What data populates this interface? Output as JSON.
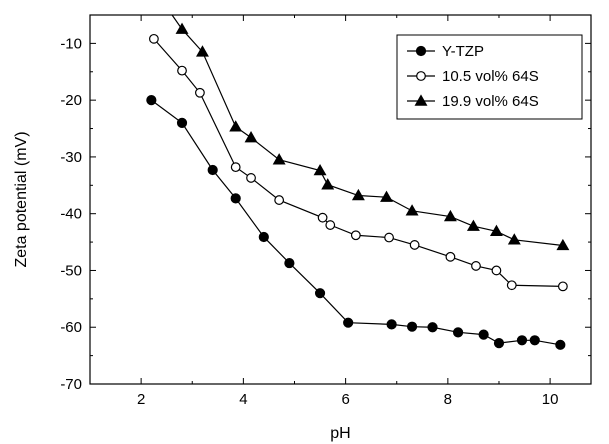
{
  "chart_data": {
    "type": "line",
    "title": "",
    "xlabel": "pH",
    "ylabel": "Zeta potential (mV)",
    "xlim": [
      1,
      10.8
    ],
    "ylim": [
      -70,
      -5
    ],
    "xticks": [
      2,
      4,
      6,
      8,
      10
    ],
    "yticks": [
      -70,
      -60,
      -50,
      -40,
      -30,
      -20,
      -10
    ],
    "grid": false,
    "legend": "top-right",
    "series": [
      {
        "name": "Y-TZP",
        "marker": "filled-circle",
        "x": [
          2.2,
          2.8,
          3.4,
          3.85,
          4.4,
          4.9,
          5.5,
          6.05,
          6.9,
          7.3,
          7.7,
          8.2,
          8.7,
          9.0,
          9.45,
          9.7,
          10.2
        ],
        "y": [
          -20,
          -24,
          -32.3,
          -37.3,
          -44.1,
          -48.7,
          -54,
          -59.2,
          -59.5,
          -59.9,
          -60.0,
          -60.9,
          -61.3,
          -62.8,
          -62.3,
          -62.3,
          -63.1
        ]
      },
      {
        "name": "10.5 vol% 64S",
        "marker": "open-circle",
        "x": [
          2.25,
          2.8,
          3.15,
          3.85,
          4.15,
          4.7,
          5.55,
          5.7,
          6.2,
          6.85,
          7.35,
          8.05,
          8.55,
          8.95,
          9.25,
          10.25
        ],
        "y": [
          -9.2,
          -14.8,
          -18.7,
          -31.8,
          -33.7,
          -37.6,
          -40.7,
          -42,
          -43.8,
          -44.2,
          -45.5,
          -47.6,
          -49.2,
          -50,
          -52.6,
          -52.8
        ]
      },
      {
        "name": "19.9 vol% 64S",
        "marker": "filled-triangle",
        "x": [
          2.8,
          3.2,
          3.85,
          4.15,
          4.7,
          5.5,
          5.65,
          6.25,
          6.8,
          7.3,
          8.05,
          8.5,
          8.95,
          9.3,
          10.25
        ],
        "y": [
          -7.5,
          -11.5,
          -24.7,
          -26.6,
          -30.5,
          -32.4,
          -34.9,
          -36.8,
          -37.1,
          -39.5,
          -40.5,
          -42.2,
          -43.1,
          -44.6,
          -45.6
        ]
      }
    ]
  }
}
